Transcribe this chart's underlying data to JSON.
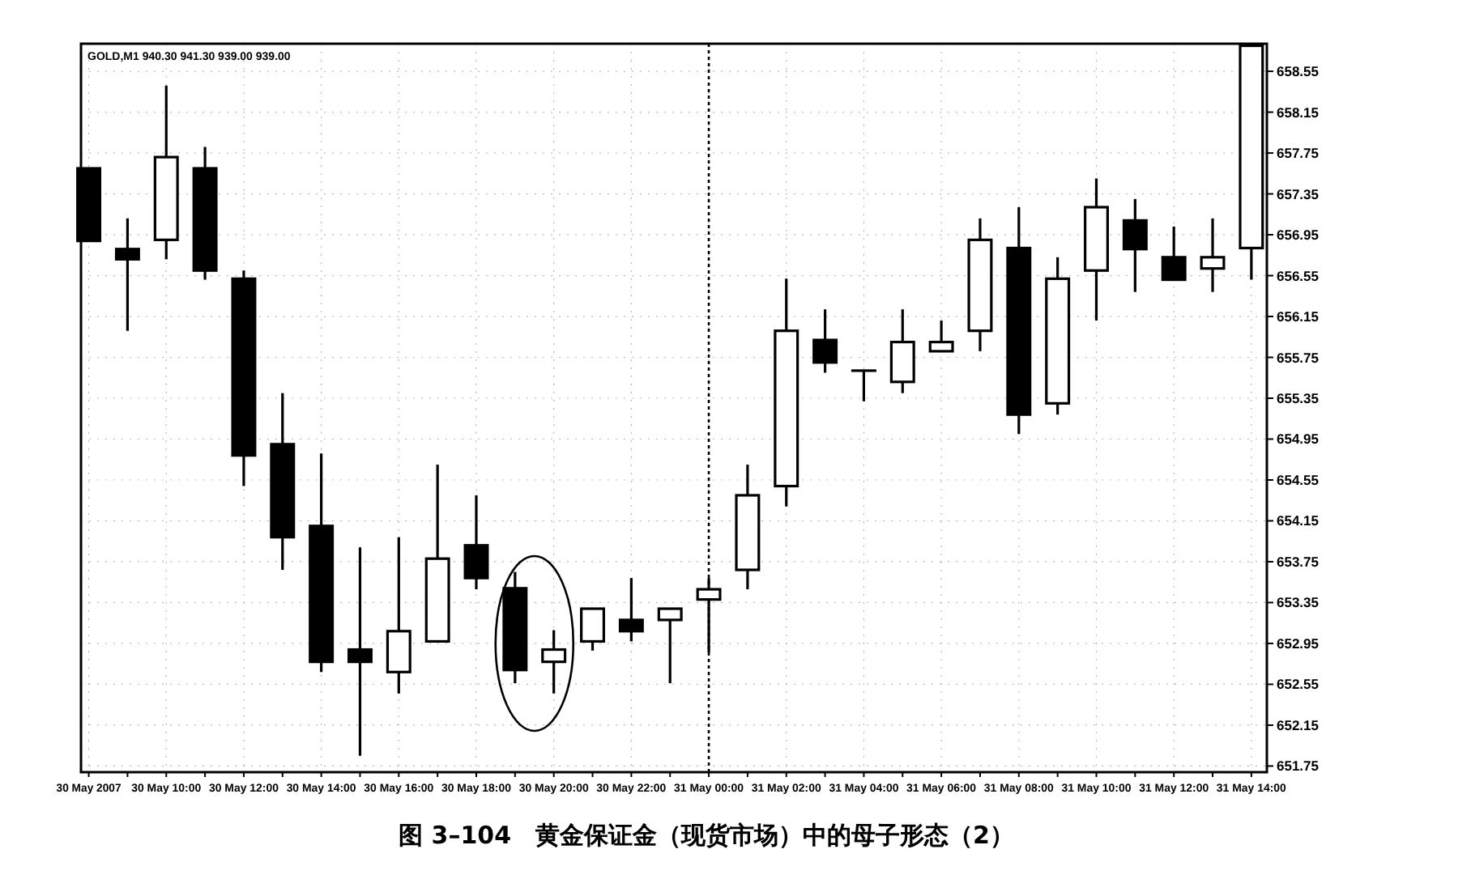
{
  "chart_data": {
    "type": "candlestick",
    "title": "图 3–104　黄金保证金（现货市场）中的母子形态（2）",
    "annotations": [
      "GOLD,M1  940.30 941.30 939.00 939.00"
    ],
    "categories": [
      "30 May 2007",
      null,
      "30 May 10:00",
      null,
      "30 May 12:00",
      null,
      "30 May 14:00",
      null,
      "30 May 16:00",
      null,
      "30 May 18:00",
      null,
      "30 May 20:00",
      null,
      "30 May 22:00",
      null,
      "31 May 00:00",
      null,
      "31 May 02:00",
      null,
      "31 May 04:00",
      null,
      "31 May 06:00",
      null,
      "31 May 08:00",
      null,
      "31 May 10:00",
      null,
      "31 May 12:00",
      null,
      "31 May 14:00"
    ],
    "ohlc": [
      [
        657.6,
        657.6,
        656.89,
        656.89
      ],
      [
        656.81,
        657.11,
        656.01,
        656.71
      ],
      [
        656.9,
        658.41,
        656.71,
        657.71
      ],
      [
        657.6,
        657.81,
        656.51,
        656.6
      ],
      [
        656.52,
        656.6,
        654.49,
        654.79
      ],
      [
        654.9,
        655.4,
        653.67,
        653.99
      ],
      [
        654.1,
        654.81,
        652.67,
        652.77
      ],
      [
        652.89,
        653.89,
        651.85,
        652.77
      ],
      [
        652.67,
        653.99,
        652.46,
        653.07
      ],
      [
        652.97,
        654.7,
        652.97,
        653.78
      ],
      [
        653.91,
        654.4,
        653.48,
        653.59
      ],
      [
        653.49,
        653.65,
        652.56,
        652.69
      ],
      [
        652.77,
        653.08,
        652.46,
        652.89
      ],
      [
        652.97,
        653.29,
        652.88,
        653.29
      ],
      [
        653.18,
        653.59,
        652.97,
        653.07
      ],
      [
        653.18,
        653.29,
        652.56,
        653.29
      ],
      [
        653.38,
        653.59,
        652.86,
        653.48
      ],
      [
        653.67,
        654.7,
        653.48,
        654.4
      ],
      [
        654.49,
        656.52,
        654.29,
        656.01
      ],
      [
        655.92,
        656.22,
        655.6,
        655.7
      ],
      [
        655.62,
        655.62,
        655.32,
        655.62
      ],
      [
        655.51,
        656.22,
        655.4,
        655.9
      ],
      [
        655.81,
        656.11,
        655.81,
        655.9
      ],
      [
        656.01,
        657.11,
        655.81,
        656.9
      ],
      [
        656.82,
        657.22,
        655.0,
        655.19
      ],
      [
        655.3,
        656.73,
        655.19,
        656.52
      ],
      [
        656.6,
        657.5,
        656.11,
        657.22
      ],
      [
        657.09,
        657.3,
        656.39,
        656.81
      ],
      [
        656.73,
        657.03,
        656.51,
        656.51
      ],
      [
        656.62,
        657.11,
        656.39,
        656.73
      ],
      [
        656.82,
        658.8,
        656.51,
        658.8
      ]
    ],
    "ylim": [
      651.69,
      658.82
    ],
    "yticks": [
      651.75,
      652.15,
      652.55,
      652.95,
      653.35,
      653.75,
      654.15,
      654.55,
      654.95,
      655.35,
      655.75,
      656.15,
      656.55,
      656.95,
      657.35,
      657.75,
      658.15,
      658.55
    ],
    "ref_lines": [
      {
        "axis": "x",
        "value": "31 May 00:00",
        "line_style": "dotted",
        "color": "#000000"
      }
    ],
    "grid": true
  }
}
